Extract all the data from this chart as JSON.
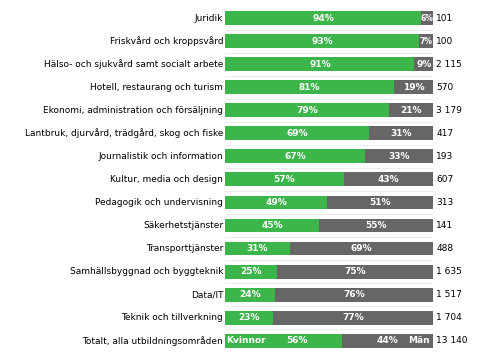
{
  "categories": [
    "Juridik",
    "Friskvård och kroppsvård",
    "Hälso- och sjukvård samt socialt arbete",
    "Hotell, restaurang och turism",
    "Ekonomi, administration och försäljning",
    "Lantbruk, djurvård, trädgård, skog och fiske",
    "Journalistik och information",
    "Kultur, media och design",
    "Pedagogik och undervisning",
    "Säkerhetstjänster",
    "Transporttjänster",
    "Samhällsbyggnad och byggteknik",
    "Data/IT",
    "Teknik och tillverkning",
    "Totalt, alla utbildningsområden"
  ],
  "kvinnor": [
    94,
    93,
    91,
    81,
    79,
    69,
    67,
    57,
    49,
    45,
    31,
    25,
    24,
    23,
    56
  ],
  "man": [
    6,
    7,
    9,
    19,
    21,
    31,
    33,
    43,
    51,
    55,
    69,
    75,
    76,
    77,
    44
  ],
  "totals": [
    "101",
    "100",
    "2 115",
    "570",
    "3 179",
    "417",
    "193",
    "607",
    "313",
    "141",
    "488",
    "1 635",
    "1 517",
    "1 704",
    "13 140"
  ],
  "color_green": "#3cb54a",
  "color_gray": "#666666",
  "background": "#ffffff",
  "bar_height": 0.6,
  "label_fontsize": 6.5,
  "cat_fontsize": 6.5,
  "total_fontsize": 6.5
}
